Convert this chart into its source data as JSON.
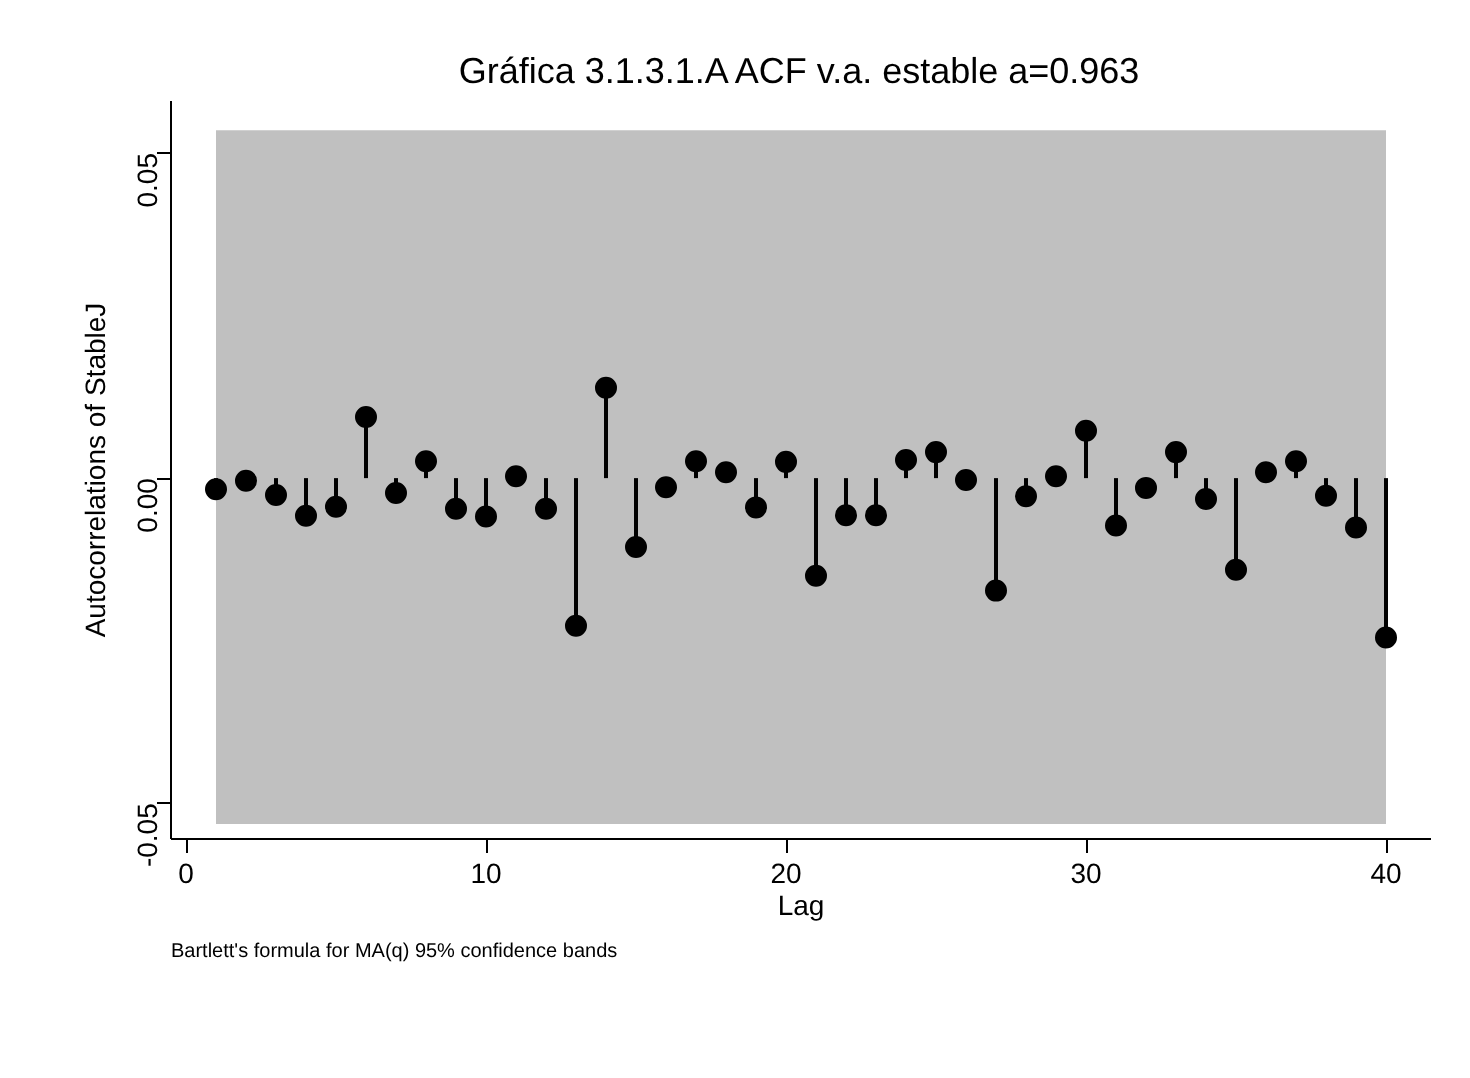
{
  "chart_data": {
    "type": "lollipop",
    "title": "Gráfica 3.1.3.1.A ACF v.a. estable a=0.963",
    "xlabel": "Lag",
    "ylabel": "Autocorrelations of StableJ",
    "x": [
      1,
      2,
      3,
      4,
      5,
      6,
      7,
      8,
      9,
      10,
      11,
      12,
      13,
      14,
      15,
      16,
      17,
      18,
      19,
      20,
      21,
      22,
      23,
      24,
      25,
      26,
      27,
      28,
      29,
      30,
      31,
      32,
      33,
      34,
      35,
      36,
      37,
      38,
      39,
      40
    ],
    "series": [
      {
        "color": "#000000",
        "values": [
          -0.0017,
          -0.0004,
          -0.0026,
          -0.0058,
          -0.0044,
          0.0094,
          -0.0023,
          0.0026,
          -0.0047,
          -0.0059,
          0.0003,
          -0.0047,
          -0.0227,
          0.0139,
          -0.0106,
          -0.0014,
          0.0026,
          0.0009,
          -0.0045,
          0.0025,
          -0.015,
          -0.0057,
          -0.0057,
          0.0028,
          0.004,
          -0.0003,
          -0.0173,
          -0.0028,
          0.0003,
          0.0073,
          -0.0073,
          -0.0015,
          0.004,
          -0.0032,
          -0.0141,
          0.0009,
          0.0026,
          -0.0027,
          -0.0076,
          -0.0245
        ]
      }
    ],
    "marker": "circle",
    "xlim": [
      -0.5,
      41.5
    ],
    "ylim": [
      -0.0555,
      0.058
    ],
    "xticks": [
      0,
      10,
      20,
      30,
      40
    ],
    "yticks": [
      {
        "value": -0.05,
        "label": "-0.05"
      },
      {
        "value": 0,
        "label": "0.00"
      },
      {
        "value": 0.05,
        "label": "0.05"
      }
    ],
    "bands": [
      {
        "axis": "y",
        "from": -0.0532,
        "to": 0.0535,
        "color": "#c0c0c0"
      }
    ],
    "grid": false,
    "annotations": [
      "Bartlett's formula for MA(q) 95% confidence bands"
    ]
  }
}
